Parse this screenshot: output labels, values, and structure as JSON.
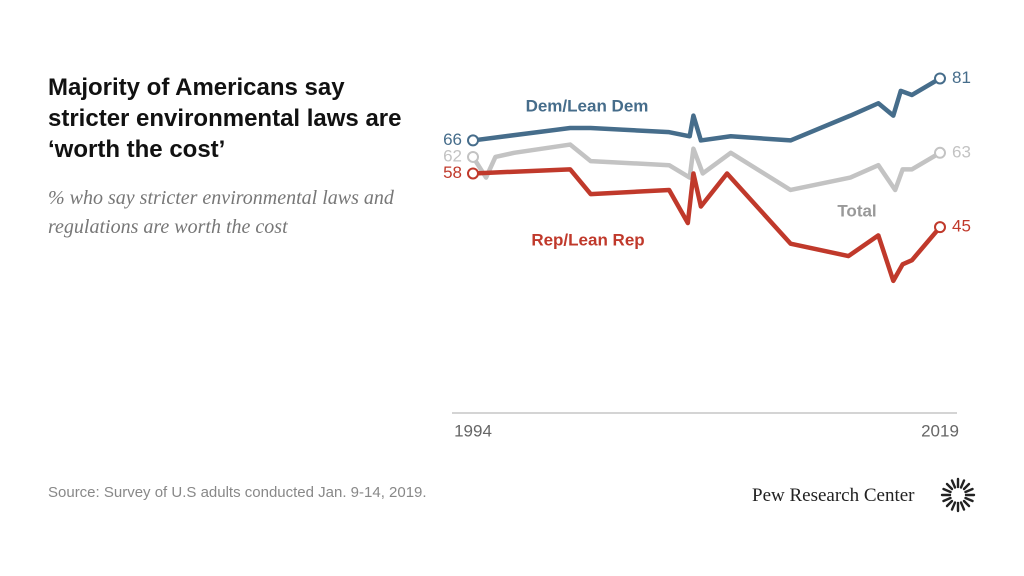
{
  "chart_data": {
    "type": "line",
    "title": "Majority of Americans say stricter environmental laws are ‘worth the cost’",
    "subtitle": "% who say stricter environmental laws and regulations are worth the cost",
    "source": "Source: Survey of U.S adults conducted Jan. 9-14, 2019.",
    "brand": "Pew Research Center",
    "xlim": [
      1994,
      2019
    ],
    "xticks": [
      1994,
      2019
    ],
    "ylim": [
      0,
      100
    ],
    "series": [
      {
        "name": "Dem/Lean Dem",
        "color": "#466d8b",
        "x": [
          1994,
          1999.2,
          2000.3,
          2004.5,
          2005.6,
          2005.8,
          2006.2,
          2007.8,
          2011.0,
          2014.2,
          2015.7,
          2016.5,
          2016.9,
          2017.5,
          2019
        ],
        "values": [
          66,
          69,
          69,
          68,
          67,
          72,
          66,
          67,
          66,
          72,
          75,
          72,
          78,
          77,
          81
        ]
      },
      {
        "name": "Total",
        "color": "#c3c3c3",
        "x": [
          1994,
          1994.7,
          1995.2,
          1996.2,
          1999.2,
          2000.3,
          2004.5,
          2005.6,
          2005.8,
          2006.3,
          2007.8,
          2011.0,
          2014.2,
          2015.7,
          2016.6,
          2017.0,
          2017.5,
          2019
        ],
        "values": [
          62,
          57,
          62,
          63,
          65,
          61,
          60,
          57,
          64,
          58,
          63,
          54,
          57,
          60,
          54,
          59,
          59,
          63
        ]
      },
      {
        "name": "Rep/Lean Rep",
        "color": "#c0392b",
        "x": [
          1994,
          1999.2,
          2000.3,
          2004.5,
          2005.5,
          2005.8,
          2006.2,
          2007.6,
          2011.0,
          2014.1,
          2015.7,
          2016.5,
          2017.0,
          2017.5,
          2019
        ],
        "values": [
          58,
          59,
          53,
          54,
          46,
          58,
          50,
          58,
          41,
          38,
          43,
          32,
          36,
          37,
          45
        ]
      }
    ]
  }
}
